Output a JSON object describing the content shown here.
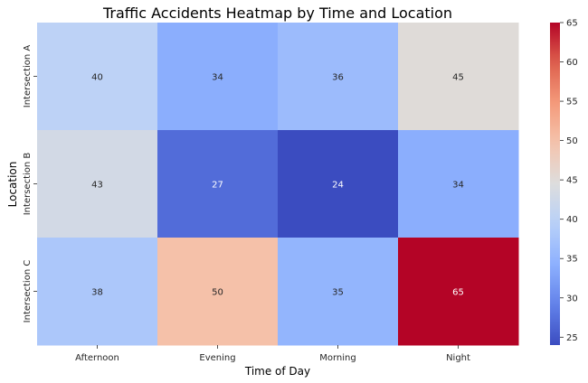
{
  "chart_data": {
    "type": "heatmap",
    "title": "Traffic Accidents Heatmap by Time and Location",
    "xlabel": "Time of Day",
    "ylabel": "Location",
    "x_categories": [
      "Afternoon",
      "Evening",
      "Morning",
      "Night"
    ],
    "y_categories": [
      "Intersection A",
      "Intersection B",
      "Intersection C"
    ],
    "values": [
      [
        40,
        34,
        36,
        45
      ],
      [
        43,
        27,
        24,
        34
      ],
      [
        38,
        50,
        35,
        65
      ]
    ],
    "colormap": "coolwarm",
    "vmin": 24,
    "vmax": 65,
    "colorbar_ticks": [
      25,
      30,
      35,
      40,
      45,
      50,
      55,
      60,
      65
    ],
    "annotate": true,
    "grid": false
  }
}
